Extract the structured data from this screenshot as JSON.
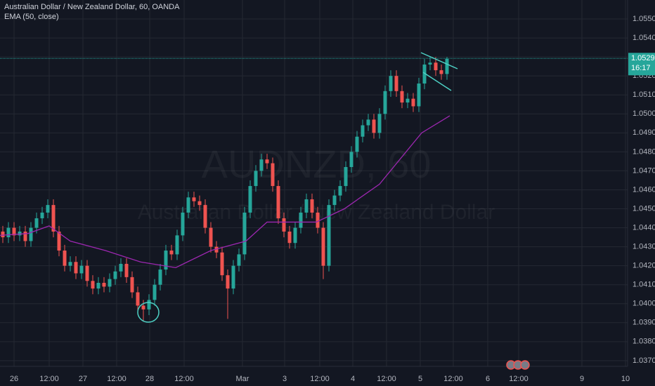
{
  "chart_data": {
    "type": "candlestick",
    "title": "Australian Dollar / New Zealand Dollar, 60, OANDA",
    "watermark": [
      "AUDNZD, 60",
      "Australian Dollar / New Zealand Dollar"
    ],
    "up_color": "#26a69a",
    "down_color": "#ef5350",
    "grid": true,
    "xlim": [
      0,
      223.25
    ],
    "ylim": [
      1.0367,
      1.056
    ],
    "xticks": [
      {
        "value": 5,
        "label": "26"
      },
      {
        "value": 17.5,
        "label": "12:00"
      },
      {
        "value": 29.5,
        "label": "27"
      },
      {
        "value": 41.5,
        "label": "12:00"
      },
      {
        "value": 53.25,
        "label": "28"
      },
      {
        "value": 65.5,
        "label": "12:00"
      },
      {
        "value": 86.25,
        "label": "Mar"
      },
      {
        "value": 101.25,
        "label": "3"
      },
      {
        "value": 113.75,
        "label": "12:00"
      },
      {
        "value": 125.5,
        "label": "4"
      },
      {
        "value": 137.5,
        "label": "12:00"
      },
      {
        "value": 149.5,
        "label": "5"
      },
      {
        "value": 161.25,
        "label": "12:00"
      },
      {
        "value": 173.5,
        "label": "6"
      },
      {
        "value": 184.5,
        "label": "12:00"
      },
      {
        "value": 207,
        "label": "9"
      },
      {
        "value": 222.5,
        "label": "10"
      }
    ],
    "yticks": [
      {
        "value": 1.055,
        "label": "1.05500"
      },
      {
        "value": 1.054,
        "label": "1.05400"
      },
      {
        "value": 1.053,
        "label": "1.05300"
      },
      {
        "value": 1.052,
        "label": "1.05200"
      },
      {
        "value": 1.051,
        "label": "1.05100"
      },
      {
        "value": 1.05,
        "label": "1.05000"
      },
      {
        "value": 1.049,
        "label": "1.04900"
      },
      {
        "value": 1.048,
        "label": "1.04800"
      },
      {
        "value": 1.047,
        "label": "1.04700"
      },
      {
        "value": 1.046,
        "label": "1.04600"
      },
      {
        "value": 1.045,
        "label": "1.04500"
      },
      {
        "value": 1.044,
        "label": "1.04400"
      },
      {
        "value": 1.043,
        "label": "1.04300"
      },
      {
        "value": 1.042,
        "label": "1.04200"
      },
      {
        "value": 1.041,
        "label": "1.04100"
      },
      {
        "value": 1.04,
        "label": "1.04000"
      },
      {
        "value": 1.039,
        "label": "1.03900"
      },
      {
        "value": 1.038,
        "label": "1.03800"
      },
      {
        "value": 1.037,
        "label": "1.03700"
      }
    ],
    "last_price": 1.05292,
    "countdown": "16:17",
    "x": [
      1,
      3,
      5,
      7,
      9,
      11,
      13,
      15,
      17,
      19,
      21,
      23,
      25,
      27,
      29,
      31,
      33,
      35,
      37,
      39,
      41,
      43,
      45,
      47,
      49,
      51,
      53,
      55,
      57,
      59,
      61,
      63,
      65,
      67,
      69,
      71,
      73,
      75,
      77,
      79,
      81,
      83,
      85,
      87,
      89,
      91,
      93,
      95,
      97,
      99,
      101,
      103,
      105,
      107,
      109,
      111,
      113,
      115,
      117,
      119,
      121,
      123,
      125,
      127,
      129,
      131,
      133,
      135,
      137,
      139,
      141,
      143,
      145,
      147,
      149,
      151,
      153,
      155,
      157,
      159
    ],
    "open": [
      1.0438,
      1.0435,
      1.044,
      1.0436,
      1.0438,
      1.0433,
      1.044,
      1.0445,
      1.0448,
      1.0452,
      1.0438,
      1.0428,
      1.042,
      1.0422,
      1.0416,
      1.042,
      1.0412,
      1.0408,
      1.0411,
      1.0409,
      1.0413,
      1.0417,
      1.0421,
      1.0414,
      1.0406,
      1.0399,
      1.0397,
      1.0402,
      1.041,
      1.0418,
      1.0428,
      1.0426,
      1.0436,
      1.0448,
      1.0456,
      1.0454,
      1.0452,
      1.044,
      1.043,
      1.0427,
      1.0415,
      1.0408,
      1.042,
      1.0426,
      1.0448,
      1.0462,
      1.047,
      1.0476,
      1.0474,
      1.0462,
      1.0445,
      1.0438,
      1.0432,
      1.044,
      1.0448,
      1.0455,
      1.0448,
      1.044,
      1.042,
      1.0452,
      1.0457,
      1.0462,
      1.0472,
      1.048,
      1.0488,
      1.0494,
      1.0497,
      1.049,
      1.05,
      1.0512,
      1.052,
      1.0512,
      1.0506,
      1.0508,
      1.0504,
      1.0516,
      1.0526,
      1.0527,
      1.0523,
      1.0521
    ],
    "high": [
      1.0441,
      1.0443,
      1.0443,
      1.0441,
      1.0441,
      1.0443,
      1.0448,
      1.0451,
      1.0455,
      1.0455,
      1.0441,
      1.0431,
      1.0425,
      1.0425,
      1.0423,
      1.0423,
      1.0415,
      1.0414,
      1.0414,
      1.0416,
      1.042,
      1.0424,
      1.0424,
      1.0417,
      1.0409,
      1.0402,
      1.0405,
      1.0413,
      1.0421,
      1.0431,
      1.0431,
      1.0439,
      1.0451,
      1.0459,
      1.0459,
      1.0457,
      1.0455,
      1.0443,
      1.0433,
      1.043,
      1.0418,
      1.0423,
      1.0429,
      1.0451,
      1.0465,
      1.0473,
      1.0479,
      1.0479,
      1.0477,
      1.0465,
      1.0448,
      1.0441,
      1.0443,
      1.0451,
      1.0458,
      1.0458,
      1.0451,
      1.0443,
      1.0455,
      1.046,
      1.0465,
      1.0475,
      1.0483,
      1.0491,
      1.0497,
      1.05,
      1.05,
      1.0503,
      1.0515,
      1.0523,
      1.0523,
      1.0515,
      1.0511,
      1.0511,
      1.0519,
      1.0529,
      1.053,
      1.053,
      1.0526,
      1.053
    ],
    "low": [
      1.0432,
      1.0432,
      1.0433,
      1.0433,
      1.043,
      1.043,
      1.0437,
      1.0442,
      1.0445,
      1.0435,
      1.0425,
      1.0417,
      1.0417,
      1.0413,
      1.0413,
      1.0409,
      1.0405,
      1.0405,
      1.0406,
      1.0406,
      1.041,
      1.0414,
      1.0411,
      1.0403,
      1.0396,
      1.0391,
      1.0394,
      1.0399,
      1.0407,
      1.0415,
      1.0423,
      1.0423,
      1.0433,
      1.0445,
      1.0451,
      1.0449,
      1.0437,
      1.0427,
      1.0424,
      1.0412,
      1.0392,
      1.0405,
      1.0417,
      1.0423,
      1.0445,
      1.0459,
      1.0467,
      1.0471,
      1.0459,
      1.0442,
      1.0435,
      1.0429,
      1.0429,
      1.0437,
      1.0445,
      1.0445,
      1.0437,
      1.0413,
      1.0417,
      1.0449,
      1.0454,
      1.0459,
      1.0469,
      1.0477,
      1.0485,
      1.0491,
      1.0487,
      1.0487,
      1.0497,
      1.0509,
      1.0509,
      1.0503,
      1.0503,
      1.0501,
      1.0501,
      1.0513,
      1.0523,
      1.052,
      1.0518,
      1.0518
    ],
    "close": [
      1.0435,
      1.044,
      1.0436,
      1.0438,
      1.0433,
      1.044,
      1.0445,
      1.0448,
      1.0452,
      1.0438,
      1.0428,
      1.042,
      1.0422,
      1.0416,
      1.042,
      1.0412,
      1.0408,
      1.0411,
      1.0409,
      1.0413,
      1.0417,
      1.0421,
      1.0414,
      1.0406,
      1.0399,
      1.0397,
      1.0402,
      1.041,
      1.0418,
      1.0428,
      1.0426,
      1.0436,
      1.0448,
      1.0456,
      1.0454,
      1.0452,
      1.044,
      1.043,
      1.0427,
      1.0415,
      1.0408,
      1.042,
      1.0426,
      1.0448,
      1.0462,
      1.047,
      1.0476,
      1.0474,
      1.0462,
      1.0445,
      1.0438,
      1.0432,
      1.044,
      1.0448,
      1.0455,
      1.0448,
      1.044,
      1.042,
      1.0452,
      1.0457,
      1.0462,
      1.0472,
      1.048,
      1.0488,
      1.0494,
      1.0497,
      1.049,
      1.05,
      1.0512,
      1.052,
      1.0512,
      1.0506,
      1.0508,
      1.0504,
      1.0516,
      1.0526,
      1.0527,
      1.0523,
      1.0521,
      1.0529
    ],
    "series": [
      {
        "name": "EMA (50, close)",
        "color": "#9c27b0",
        "x": [
          0,
          10,
          17.5,
          25,
          37.5,
          50,
          62.5,
          75,
          87.5,
          95,
          112.5,
          122.5,
          135,
          150,
          160
        ],
        "values": [
          1.0436,
          1.0437,
          1.0441,
          1.0433,
          1.0428,
          1.0422,
          1.0419,
          1.0428,
          1.0433,
          1.0443,
          1.0443,
          1.045,
          1.0463,
          1.049,
          1.0499
        ]
      }
    ]
  }
}
